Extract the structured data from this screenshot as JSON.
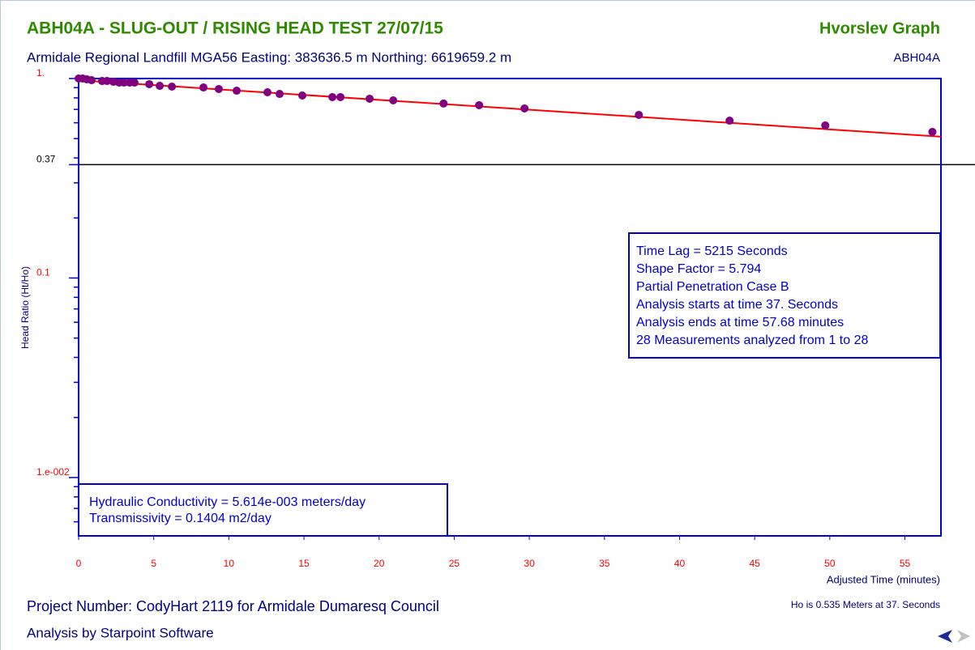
{
  "chart_data": {
    "type": "scatter",
    "title": "ABH04A - SLUG-OUT / RISING HEAD TEST 27/07/15",
    "graph_name": "Hvorslev Graph",
    "subtitle": "Armidale Regional Landfill MGA56 Easting: 383636.5 m Northing: 6619659.2 m",
    "well_id": "ABH04A",
    "y_label": "Head Ratio (Ht/Ho)",
    "x_label": "Adjusted Time (minutes)",
    "log_y": true,
    "xlim": [
      0,
      57.4
    ],
    "ylim": [
      0.0051,
      1
    ],
    "xticks": [
      0,
      5,
      10,
      15,
      20,
      25,
      30,
      35,
      40,
      45,
      50,
      55
    ],
    "yticks": [
      {
        "value": 1,
        "label": "1."
      },
      {
        "value": 0.37,
        "label": "0.37"
      },
      {
        "value": 0.1,
        "label": "0.1"
      },
      {
        "value": 0.01,
        "label": "1.e-002"
      }
    ],
    "hline": {
      "value": 0.37,
      "color": "#000000"
    },
    "x": [
      0,
      0.27,
      0.54,
      0.86,
      1.56,
      1.89,
      2.32,
      2.7,
      3.02,
      3.4,
      3.72,
      4.7,
      5.4,
      6.21,
      8.31,
      9.33,
      10.52,
      12.57,
      13.38,
      14.89,
      16.89,
      17.43,
      19.37,
      20.94,
      24.29,
      26.66,
      29.68,
      37.29,
      43.33,
      49.7,
      56.83
    ],
    "series": [
      {
        "color": "#800080",
        "values": [
          1.0,
          1.0,
          0.991,
          0.981,
          0.972,
          0.972,
          0.963,
          0.954,
          0.954,
          0.954,
          0.954,
          0.937,
          0.919,
          0.911,
          0.902,
          0.886,
          0.869,
          0.853,
          0.837,
          0.822,
          0.807,
          0.807,
          0.792,
          0.777,
          0.749,
          0.735,
          0.708,
          0.657,
          0.615,
          0.582,
          0.54
        ]
      }
    ],
    "fit_line": {
      "color": "#ff0000",
      "x": [
        0,
        57.4
      ],
      "values": [
        0.981,
        0.511
      ]
    },
    "results_box": [
      "Time Lag = 5215 Seconds",
      "Shape Factor = 5.794",
      "Partial Penetration Case B",
      "Analysis starts at time 37. Seconds",
      "Analysis ends at time 57.68 minutes",
      "28 Measurements analyzed from 1 to 28"
    ],
    "conductivity_box": [
      "Hydraulic Conductivity = 5.614e-003 meters/day",
      "Transmissivity = 0.1404 m2/day"
    ],
    "footer": {
      "project": "Project Number: CodyHart 2119 for Armidale Dumaresq Council",
      "analysis_by": "Analysis by Starpoint Software",
      "ho_note": "Ho is 0.535 Meters at 37. Seconds"
    }
  }
}
